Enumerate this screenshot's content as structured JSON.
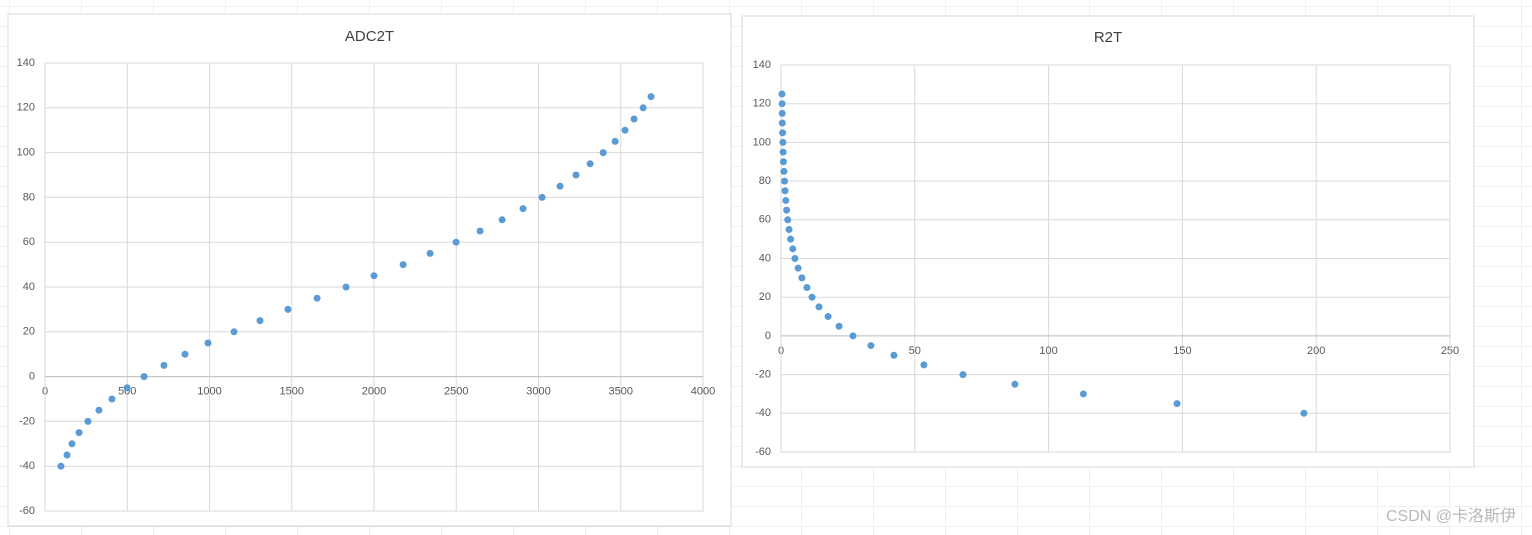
{
  "chart_data": [
    {
      "type": "scatter",
      "title": "ADC2T",
      "color": "#5b9bd5",
      "grid": true,
      "x": [
        97,
        134,
        164,
        207,
        261,
        328,
        407,
        499,
        602,
        723,
        851,
        991,
        1149,
        1307,
        1477,
        1654,
        1830,
        2000,
        2177,
        2341,
        2499,
        2645,
        2779,
        2906,
        3022,
        3131,
        3228,
        3314,
        3393,
        3466,
        3526,
        3581,
        3636,
        3684
      ],
      "values": [
        -40,
        -35,
        -30,
        -25,
        -20,
        -15,
        -10,
        -5,
        0,
        5,
        10,
        15,
        20,
        25,
        30,
        35,
        40,
        45,
        50,
        55,
        60,
        65,
        70,
        75,
        80,
        85,
        90,
        95,
        100,
        105,
        110,
        115,
        120,
        125
      ],
      "xlim": [
        0,
        4000
      ],
      "xticks": [
        0,
        500,
        1000,
        1500,
        2000,
        2500,
        3000,
        3500,
        4000
      ],
      "ylim": [
        -60,
        140
      ],
      "yticks": [
        -60,
        -40,
        -20,
        0,
        20,
        40,
        60,
        80,
        100,
        120,
        140
      ]
    },
    {
      "type": "scatter",
      "title": "R2T",
      "color": "#5b9bd5",
      "grid": true,
      "x": [
        195.4,
        148,
        113,
        87.4,
        68,
        53.4,
        42.2,
        33.6,
        26.9,
        21.7,
        17.6,
        14.2,
        11.6,
        9.7,
        7.8,
        6.4,
        5.2,
        4.4,
        3.6,
        3.0,
        2.5,
        2.1,
        1.8,
        1.5,
        1.3,
        1.1,
        0.9,
        0.8,
        0.7,
        0.6,
        0.5,
        0.45,
        0.4,
        0.35
      ],
      "values": [
        -40,
        -35,
        -30,
        -25,
        -20,
        -15,
        -10,
        -5,
        0,
        5,
        10,
        15,
        20,
        25,
        30,
        35,
        40,
        45,
        50,
        55,
        60,
        65,
        70,
        75,
        80,
        85,
        90,
        95,
        100,
        105,
        110,
        115,
        120,
        125
      ],
      "xlim": [
        0,
        250
      ],
      "xticks": [
        0,
        50,
        100,
        150,
        200,
        250
      ],
      "ylim": [
        -60,
        140
      ],
      "yticks": [
        -60,
        -40,
        -20,
        0,
        20,
        40,
        60,
        80,
        100,
        120,
        140
      ]
    }
  ],
  "watermark": "CSDN @卡洛斯伊"
}
